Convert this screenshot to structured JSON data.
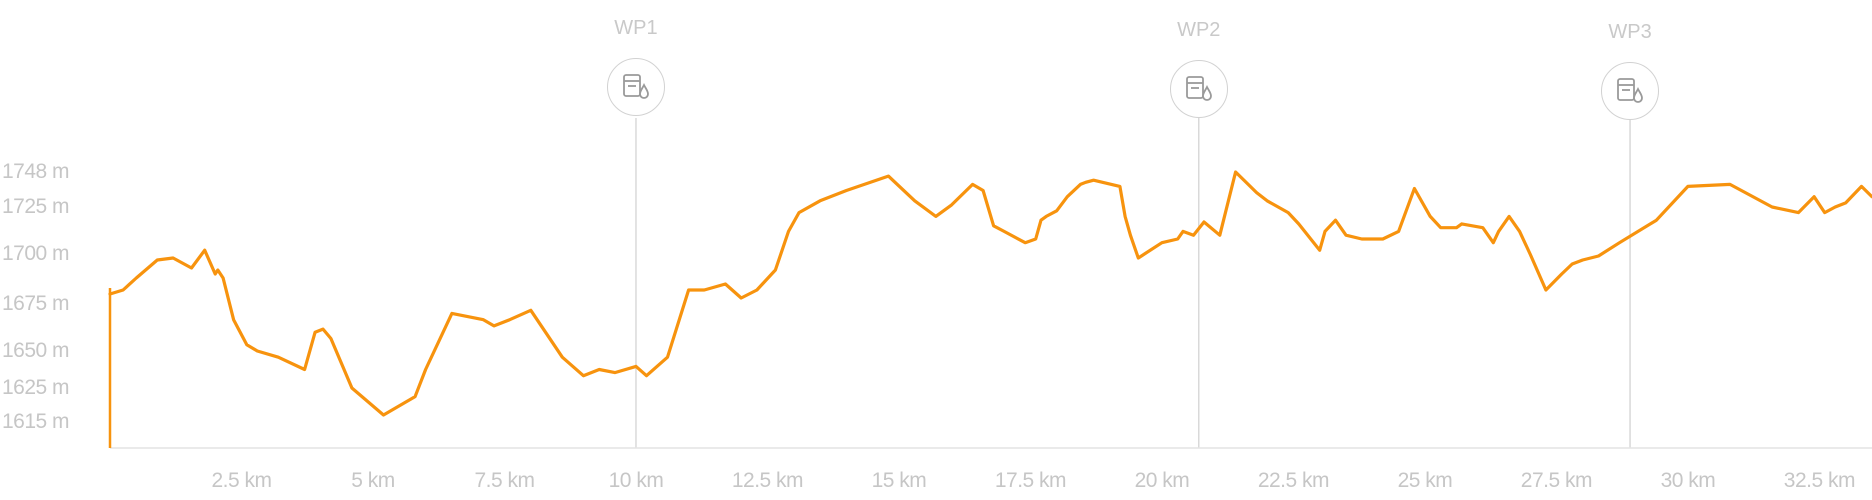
{
  "chart_data": {
    "type": "area",
    "title": "",
    "xlabel": "",
    "ylabel": "",
    "y_tick_labels": [
      "1748 m",
      "1725 m",
      "1700 m",
      "1675 m",
      "1650 m",
      "1625 m",
      "1615 m"
    ],
    "x_tick_labels": [
      "2.5 km",
      "5 km",
      "7.5 km",
      "10 km",
      "12.5 km",
      "15 km",
      "17.5 km",
      "20 km",
      "22.5 km",
      "25 km",
      "27.5 km",
      "30 km",
      "32.5 km"
    ],
    "waypoints": [
      {
        "label": "WP1",
        "km": 10.0,
        "icon": "fuel-water-icon"
      },
      {
        "label": "WP2",
        "km": 20.7,
        "icon": "fuel-water-icon"
      },
      {
        "label": "WP3",
        "km": 28.9,
        "icon": "fuel-water-icon"
      }
    ],
    "line_color": "#f7930e",
    "x_unit": "km",
    "y_unit": "m",
    "xlim": [
      0,
      33.5
    ],
    "series": [
      {
        "x": [
          0,
          0.25,
          0.5,
          0.9,
          1.2,
          1.55,
          1.8,
          2.0,
          2.05,
          2.15,
          2.35,
          2.6,
          2.8,
          3.2,
          3.7,
          3.9,
          4.05,
          4.2,
          4.6,
          5.2,
          5.8,
          6.0,
          6.5,
          7.1,
          7.3,
          7.6,
          8.0,
          8.6,
          9.0,
          9.15,
          9.3,
          9.6,
          10.0,
          10.2,
          10.6,
          11.0,
          11.3,
          11.7,
          12.0,
          12.3,
          12.65,
          12.9,
          13.1,
          13.5,
          14.0,
          14.8,
          15.3,
          15.7,
          16.0,
          16.4,
          16.6,
          16.8,
          17.0,
          17.4,
          17.6,
          17.7,
          17.8,
          18.0,
          18.2,
          18.45,
          18.55,
          18.7,
          19.2,
          19.3,
          19.4,
          19.55,
          20.0,
          20.3,
          20.4,
          20.6,
          20.8,
          21.1,
          21.4,
          21.8,
          22.0,
          22.4,
          22.6,
          23.0,
          23.1,
          23.3,
          23.5,
          23.8,
          24.2,
          24.5,
          24.8,
          25.1,
          25.3,
          25.6,
          25.7,
          26.1,
          26.3,
          26.4,
          26.6,
          26.8,
          27.0,
          27.3,
          27.6,
          27.8,
          28.0,
          28.3,
          28.7,
          29.4,
          30.0,
          30.8,
          31.6,
          32.1,
          32.4,
          32.6,
          32.8,
          33.0,
          33.3,
          33.5
        ],
        "y": [
          1680,
          1682,
          1688,
          1697,
          1698,
          1693,
          1702,
          1690,
          1692,
          1688,
          1670,
          1662,
          1660,
          1658,
          1654,
          1666,
          1667,
          1664,
          1648,
          1623,
          1640,
          1654,
          1672,
          1670,
          1668,
          1670,
          1673,
          1658,
          1652,
          1653,
          1654,
          1653,
          1655,
          1652,
          1658,
          1682,
          1682,
          1685,
          1678,
          1682,
          1692,
          1712,
          1722,
          1728,
          1733,
          1740,
          1728,
          1720,
          1726,
          1736,
          1733,
          1715,
          1712,
          1706,
          1708,
          1718,
          1720,
          1723,
          1730,
          1736,
          1737,
          1738,
          1735,
          1720,
          1710,
          1698,
          1706,
          1708,
          1712,
          1710,
          1717,
          1710,
          1742,
          1732,
          1728,
          1722,
          1716,
          1702,
          1712,
          1718,
          1710,
          1708,
          1708,
          1712,
          1734,
          1720,
          1714,
          1714,
          1716,
          1714,
          1706,
          1712,
          1720,
          1712,
          1700,
          1682,
          1690,
          1695,
          1697,
          1699,
          1706,
          1718,
          1735,
          1736,
          1725,
          1722,
          1730,
          1722,
          1725,
          1727,
          1735,
          1730
        ]
      }
    ]
  }
}
